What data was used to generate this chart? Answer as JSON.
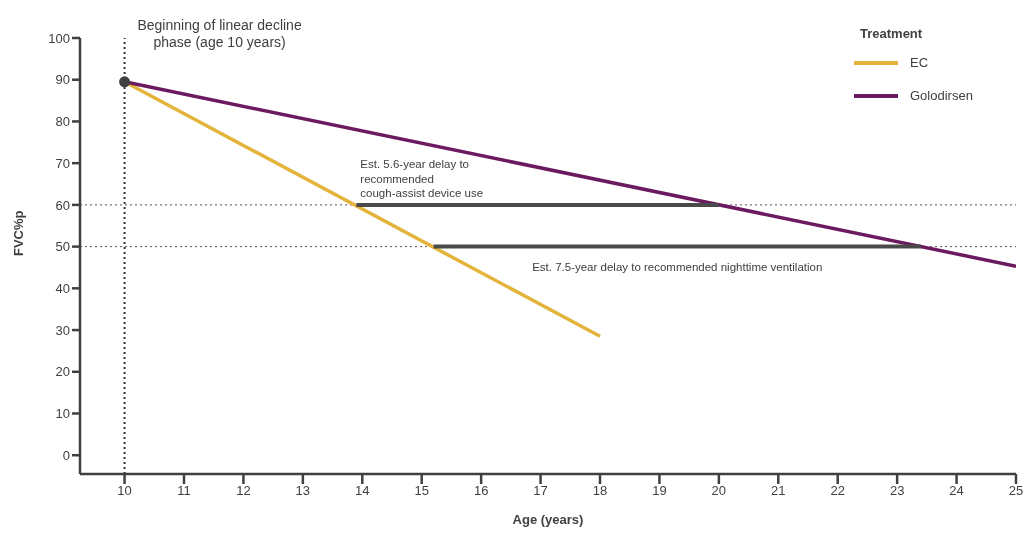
{
  "chart_data": {
    "type": "line",
    "xlabel": "Age (years)",
    "ylabel": "FVC%p",
    "legend_title": "Treatment",
    "legend": "top right",
    "grid": false,
    "line_style": "solid",
    "xlim": [
      9.25,
      25
    ],
    "xticks": [
      10,
      11,
      12,
      13,
      14,
      15,
      16,
      17,
      18,
      19,
      20,
      21,
      22,
      23,
      24,
      25
    ],
    "ylim": [
      -4.5,
      100
    ],
    "yticks": [
      0,
      10,
      20,
      30,
      40,
      50,
      60,
      70,
      80,
      90,
      100
    ],
    "series": [
      {
        "name": "EC",
        "color": "#e4b33b",
        "x": [
          10,
          18
        ],
        "values": [
          89.5,
          28.5
        ]
      },
      {
        "name": "Golodirsen",
        "color": "#6b1a5f",
        "x": [
          10,
          25
        ],
        "values": [
          89.5,
          45.3
        ]
      },
      {
        "color": "#4a4a4a",
        "x": [
          13.9,
          20
        ],
        "values": [
          60,
          60
        ]
      },
      {
        "color": "#4a4a4a",
        "x": [
          15.2,
          23.4
        ],
        "values": [
          50,
          50
        ]
      },
      {
        "type": "scatter",
        "marker": "circle",
        "color": "#404040",
        "x": [
          10
        ],
        "values": [
          89.5
        ]
      }
    ],
    "ref_lines": [
      {
        "axis": "y",
        "value": 60,
        "color": "#555555",
        "line_style": "dotted"
      },
      {
        "axis": "y",
        "value": 50,
        "color": "#555555",
        "line_style": "dotted"
      },
      {
        "axis": "x",
        "value": 10,
        "color": "#333333",
        "line_style": "dotted"
      }
    ],
    "annotations": [
      {
        "text": "Beginning of linear decline phase (age 10 years)",
        "x": 10,
        "y": 89.5
      },
      {
        "text": "Est. 5.6-year delay to recommended cough-assist device use",
        "x": 13.9,
        "y": 60
      },
      {
        "text": "Est. 7.5-year delay to recommended nighttime ventilation",
        "x": 19.3,
        "y": 50
      }
    ]
  }
}
